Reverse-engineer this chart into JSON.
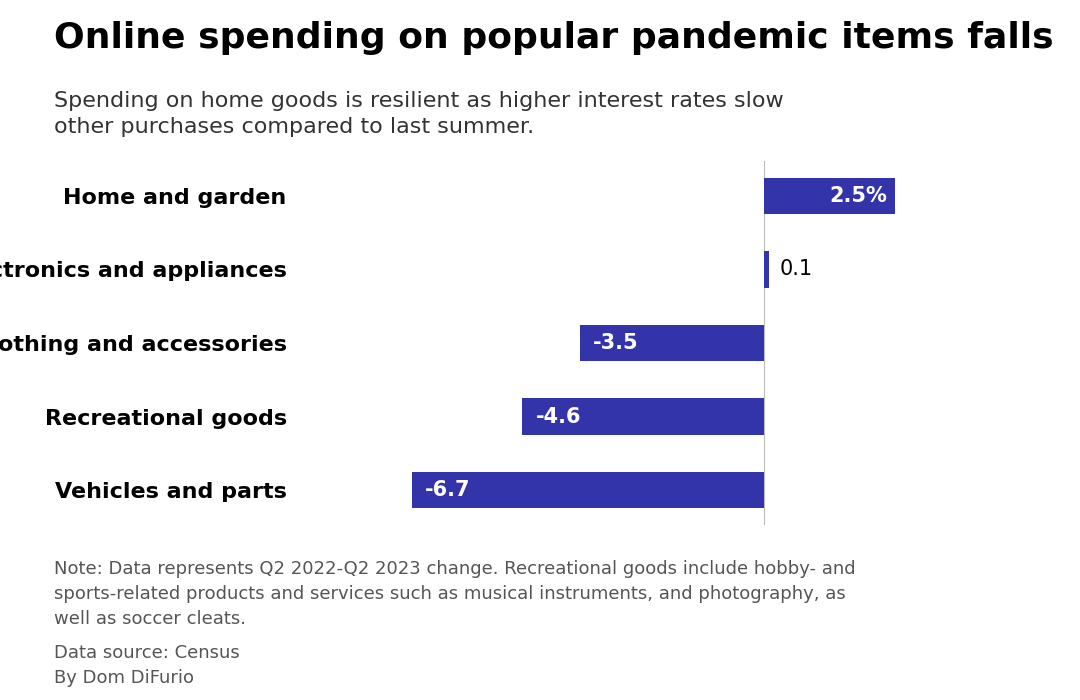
{
  "title": "Online spending on popular pandemic items falls",
  "subtitle": "Spending on home goods is resilient as higher interest rates slow\nother purchases compared to last summer.",
  "categories": [
    "Vehicles and parts",
    "Recreational goods",
    "Clothing and accessories",
    "Electronics and appliances",
    "Home and garden"
  ],
  "values": [
    -6.7,
    -4.6,
    -3.5,
    0.1,
    2.5
  ],
  "bar_color": "#3333aa",
  "label_inside_color": "#ffffff",
  "label_outside_color": "#000000",
  "note": "Note: Data represents Q2 2022-Q2 2023 change. Recreational goods include hobby- and\nsports-related products and services such as musical instruments, and photography, as\nwell as soccer cleats.",
  "source": "Data source: Census\nBy Dom DiFurio",
  "background_color": "#ffffff",
  "title_fontsize": 26,
  "subtitle_fontsize": 16,
  "label_fontsize": 15,
  "category_fontsize": 16,
  "note_fontsize": 13,
  "xlim": [
    -9,
    5
  ],
  "bar_height": 0.5
}
